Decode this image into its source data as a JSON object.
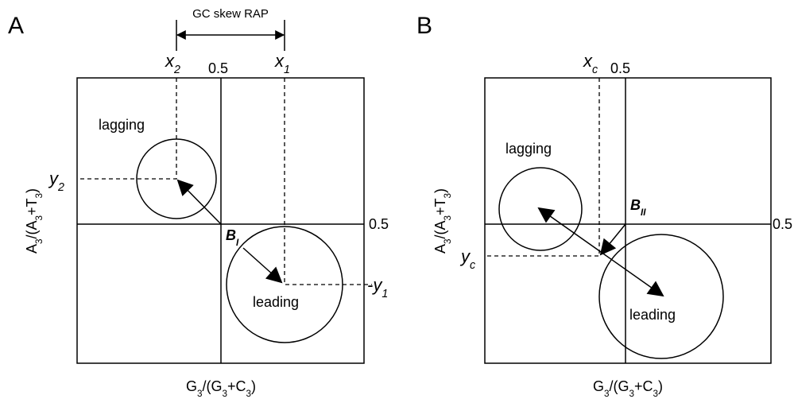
{
  "panels": [
    {
      "letter": "A",
      "rap_label": "GC skew RAP",
      "x2": [
        "x",
        "2"
      ],
      "x1": [
        "x",
        "1"
      ],
      "y2": [
        "y",
        "2"
      ],
      "y1": [
        "-y",
        "1"
      ],
      "half_top": "0.5",
      "half_right": "0.5",
      "lagging": "lagging",
      "leading": "leading",
      "b": [
        "B",
        "I"
      ],
      "y_axis": [
        "A",
        "3",
        "/(A",
        "3",
        "+T",
        "3",
        ")"
      ],
      "x_axis": [
        "G",
        "3",
        "/(G",
        "3",
        "+C",
        "3",
        ")"
      ]
    },
    {
      "letter": "B",
      "xc": [
        "x",
        "c"
      ],
      "yc": [
        "y",
        "c"
      ],
      "half_top": "0.5",
      "half_right": "0.5",
      "lagging": "lagging",
      "leading": "leading",
      "b": [
        "B",
        "II"
      ],
      "y_axis": [
        "A",
        "3",
        "/(A",
        "3",
        "+T",
        "3",
        ")"
      ],
      "x_axis": [
        "G",
        "3",
        "/(G",
        "3",
        "+C",
        "3",
        ")"
      ]
    }
  ]
}
